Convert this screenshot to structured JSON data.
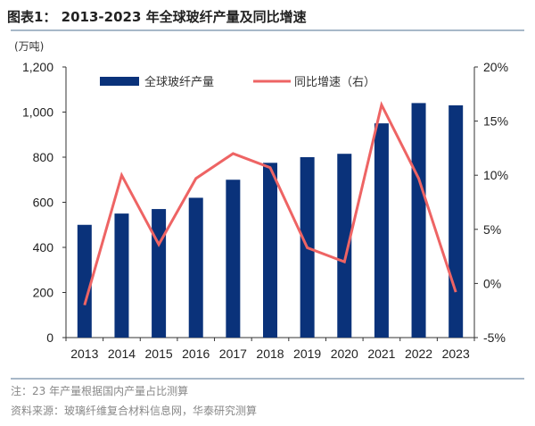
{
  "chart_data": {
    "type": "bar+line",
    "title": "图表1：  2013-2023 年全球玻纤产量及同比增速",
    "left_unit": "(万吨)",
    "categories": [
      "2013",
      "2014",
      "2015",
      "2016",
      "2017",
      "2018",
      "2019",
      "2020",
      "2021",
      "2022",
      "2023"
    ],
    "series": [
      {
        "name": "全球玻纤产量",
        "type": "bar",
        "axis": "left",
        "color": "#0a327a",
        "values": [
          500,
          550,
          570,
          620,
          700,
          775,
          800,
          815,
          950,
          1040,
          1030
        ]
      },
      {
        "name": "同比增速（右）",
        "type": "line",
        "axis": "right",
        "color": "#ee6464",
        "values": [
          -2.0,
          10.0,
          3.6,
          9.7,
          12.0,
          10.7,
          3.3,
          2.0,
          16.5,
          9.7,
          -0.8
        ]
      }
    ],
    "left_axis": {
      "min": 0,
      "max": 1200,
      "ticks": [
        "0",
        "200",
        "400",
        "600",
        "800",
        "1,000",
        "1,200"
      ]
    },
    "right_axis": {
      "min": -5,
      "max": 20,
      "ticks": [
        "-5%",
        "0%",
        "5%",
        "10%",
        "15%",
        "20%"
      ]
    },
    "legend_placement": "top",
    "grid": false
  },
  "footer": {
    "note": "注：23 年产量根据国内产量占比测算",
    "source": "资料来源：玻璃纤维复合材料信息网，华泰研究测算"
  }
}
